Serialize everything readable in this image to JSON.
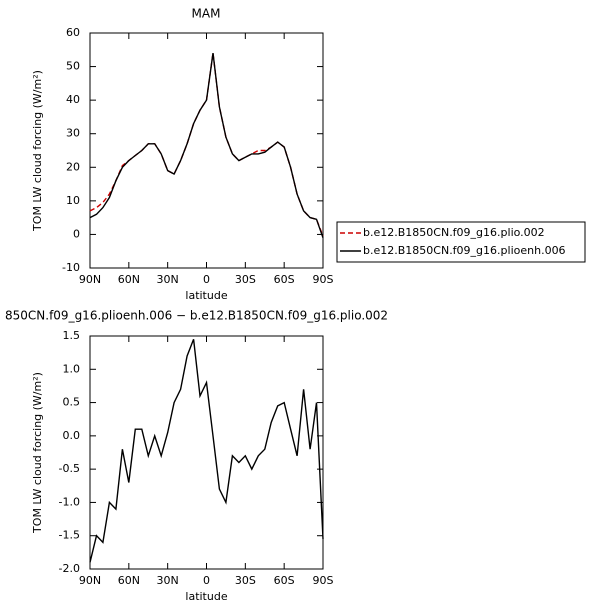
{
  "chart_data": [
    {
      "type": "line",
      "title": "MAM",
      "x_label": "latitude",
      "y_label": "TOM LW cloud forcing (W/m²)",
      "x": [
        90,
        85,
        80,
        75,
        70,
        65,
        60,
        55,
        50,
        45,
        40,
        35,
        30,
        25,
        20,
        15,
        10,
        5,
        0,
        -5,
        -10,
        -15,
        -20,
        -25,
        -30,
        -35,
        -40,
        -45,
        -50,
        -55,
        -60,
        -65,
        -70,
        -75,
        -80,
        -85,
        -90
      ],
      "xlim": [
        90,
        -90
      ],
      "xticks": [
        {
          "value": 90,
          "label": "90N"
        },
        {
          "value": 60,
          "label": "60N"
        },
        {
          "value": 30,
          "label": "30N"
        },
        0,
        {
          "value": -30,
          "label": "30S"
        },
        {
          "value": -60,
          "label": "60S"
        },
        {
          "value": -90,
          "label": "90S"
        }
      ],
      "ylim": [
        -10,
        60
      ],
      "yticks": [
        -10,
        0,
        10,
        20,
        30,
        40,
        50,
        60
      ],
      "legend": "right",
      "series": [
        {
          "name": "b.e12.B1850CN.f09_g16.plio.002",
          "color": "#cc0000",
          "dash": true,
          "values": [
            7,
            8,
            9.5,
            12,
            16,
            20.5,
            22,
            23.5,
            25,
            27,
            27,
            24,
            19,
            18,
            22,
            27,
            33,
            37,
            40,
            54,
            38,
            29,
            24,
            22,
            23,
            24,
            25,
            25,
            26,
            27.5,
            26,
            20,
            12,
            7,
            5,
            4.5,
            -0.5
          ]
        },
        {
          "name": "b.e12.B1850CN.f09_g16.plioenh.006",
          "color": "#000000",
          "dash": false,
          "values": [
            5,
            6,
            8,
            11,
            16,
            20,
            22,
            23.5,
            25,
            27,
            27,
            24,
            19,
            18,
            22,
            27,
            33,
            37,
            40,
            54,
            38,
            29,
            24,
            22,
            23,
            24,
            24,
            24.5,
            26,
            27.5,
            26,
            20,
            12,
            7,
            5,
            4.5,
            -1
          ]
        }
      ]
    },
    {
      "type": "line",
      "title": "850CN.f09_g16.plioenh.006 − b.e12.B1850CN.f09_g16.plio.002",
      "x_label": "latitude",
      "y_label": "TOM LW cloud forcing (W/m²)",
      "x": [
        90,
        85,
        80,
        75,
        70,
        65,
        60,
        55,
        50,
        45,
        40,
        35,
        30,
        25,
        20,
        15,
        10,
        5,
        0,
        -5,
        -10,
        -15,
        -20,
        -25,
        -30,
        -35,
        -40,
        -45,
        -50,
        -55,
        -60,
        -65,
        -70,
        -75,
        -80,
        -85,
        -90
      ],
      "xlim": [
        90,
        -90
      ],
      "xticks": [
        {
          "value": 90,
          "label": "90N"
        },
        {
          "value": 60,
          "label": "60N"
        },
        {
          "value": 30,
          "label": "30N"
        },
        0,
        {
          "value": -30,
          "label": "30S"
        },
        {
          "value": -60,
          "label": "60S"
        },
        {
          "value": -90,
          "label": "90S"
        }
      ],
      "ylim": [
        -2,
        1.5
      ],
      "yticks": [
        {
          "value": -2,
          "label": "-2.0"
        },
        -1.5,
        {
          "value": -1,
          "label": "-1.0"
        },
        -0.5,
        {
          "value": 0,
          "label": "0.0"
        },
        0.5,
        {
          "value": 1,
          "label": "1.0"
        },
        1.5
      ],
      "series": [
        {
          "color": "#000000",
          "dash": false,
          "values": [
            -1.9,
            -1.5,
            -1.6,
            -1.0,
            -1.1,
            -0.2,
            -0.7,
            0.1,
            0.1,
            -0.3,
            0.0,
            -0.3,
            0.05,
            0.5,
            0.7,
            1.2,
            1.45,
            0.6,
            0.8,
            0.0,
            -0.8,
            -1.0,
            -0.3,
            -0.4,
            -0.3,
            -0.5,
            -0.3,
            -0.2,
            0.2,
            0.45,
            0.5,
            0.1,
            -0.3,
            0.7,
            -0.2,
            0.5,
            -1.55
          ]
        }
      ]
    }
  ]
}
